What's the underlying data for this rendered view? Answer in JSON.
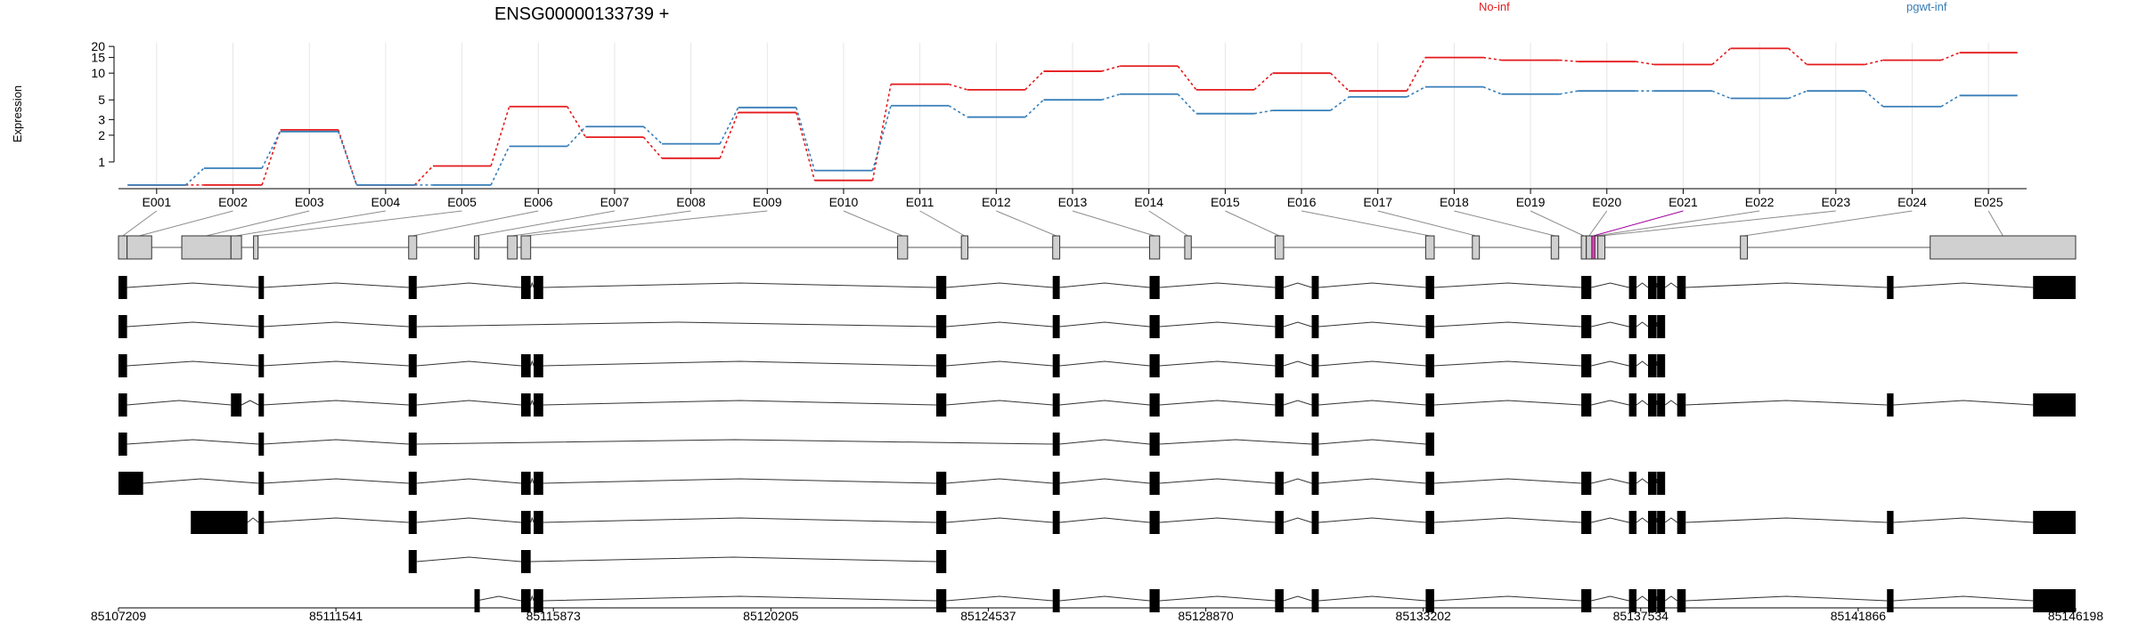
{
  "chart_data": {
    "type": "line",
    "title": "ENSG00000133739 +",
    "ylabel": "Expression",
    "y_scale": "log",
    "y_ticks": [
      "1",
      "2",
      "3",
      "5",
      "10",
      "15",
      "20"
    ],
    "y_tick_values": [
      1,
      2,
      3,
      5,
      10,
      15,
      20
    ],
    "ylim": [
      0.5,
      22
    ],
    "grid": true,
    "legend_placement": "top",
    "categories": [
      "E001",
      "E002",
      "E003",
      "E004",
      "E005",
      "E006",
      "E007",
      "E008",
      "E009",
      "E010",
      "E011",
      "E012",
      "E013",
      "E014",
      "E015",
      "E016",
      "E017",
      "E018",
      "E019",
      "E020",
      "E021",
      "E022",
      "E023",
      "E024",
      "E025"
    ],
    "series": [
      {
        "name": "No-inf",
        "color": "#e41a1c",
        "values": [
          0.55,
          0.55,
          2.3,
          0.55,
          0.9,
          4.2,
          1.9,
          1.1,
          3.6,
          0.62,
          7.5,
          6.5,
          10.5,
          12,
          6.5,
          10,
          6.3,
          15,
          14,
          13.5,
          12.5,
          19,
          12.5,
          14,
          17
        ]
      },
      {
        "name": "pgwt-inf",
        "color": "#377eb8",
        "values": [
          0.55,
          0.85,
          2.2,
          0.55,
          0.55,
          1.5,
          2.5,
          1.6,
          4.1,
          0.8,
          4.3,
          3.2,
          5.0,
          5.8,
          3.5,
          3.8,
          5.4,
          7.0,
          5.8,
          6.3,
          6.3,
          5.2,
          6.3,
          4.2,
          5.6
        ]
      }
    ],
    "exons": [
      {
        "id": "E001",
        "start": 85107209,
        "end": 85107380
      },
      {
        "id": "E002",
        "start": 85107380,
        "end": 85107870
      },
      {
        "id": "E003",
        "start": 85108470,
        "end": 85109450
      },
      {
        "id": "E004",
        "start": 85109450,
        "end": 85109660
      },
      {
        "id": "E005",
        "start": 85109900,
        "end": 85109990
      },
      {
        "id": "E006",
        "start": 85112990,
        "end": 85113150
      },
      {
        "id": "E007",
        "start": 85114300,
        "end": 85114340
      },
      {
        "id": "E008",
        "start": 85114960,
        "end": 85115150
      },
      {
        "id": "E009",
        "start": 85115230,
        "end": 85115420
      },
      {
        "id": "E010",
        "start": 85122730,
        "end": 85122930
      },
      {
        "id": "E011",
        "start": 85124000,
        "end": 85124130
      },
      {
        "id": "E012",
        "start": 85125820,
        "end": 85125960
      },
      {
        "id": "E013",
        "start": 85127750,
        "end": 85127950
      },
      {
        "id": "E014",
        "start": 85128450,
        "end": 85128580
      },
      {
        "id": "E015",
        "start": 85130250,
        "end": 85130420
      },
      {
        "id": "E016",
        "start": 85133250,
        "end": 85133420
      },
      {
        "id": "E017",
        "start": 85134180,
        "end": 85134320
      },
      {
        "id": "E018",
        "start": 85135750,
        "end": 85135900
      },
      {
        "id": "E019",
        "start": 85136350,
        "end": 85136450
      },
      {
        "id": "E020",
        "start": 85136450,
        "end": 85136560
      },
      {
        "id": "E021",
        "start": 85136560,
        "end": 85136620
      },
      {
        "id": "E022",
        "start": 85136620,
        "end": 85136680
      },
      {
        "id": "E023",
        "start": 85136680,
        "end": 85136820
      },
      {
        "id": "E024",
        "start": 85139520,
        "end": 85139660
      },
      {
        "id": "E025",
        "start": 85143300,
        "end": 85146198
      }
    ],
    "highlighted_exon": "E021",
    "highlight_color": "#ff33cc",
    "genome_axis": {
      "range": [
        85107209,
        85146198
      ],
      "tick_labels": [
        "85107209",
        "85111541",
        "85115873",
        "85120205",
        "85124537",
        "85128870",
        "85133202",
        "85137534",
        "85141866",
        "85146198"
      ]
    },
    "transcripts": [
      [
        [
          85107209,
          85107380
        ],
        [
          85110000,
          85110090
        ],
        [
          85112990,
          85113150
        ],
        [
          85115230,
          85115420
        ],
        [
          85115480,
          85115670
        ],
        [
          85123500,
          85123700
        ],
        [
          85125820,
          85125960
        ],
        [
          85127750,
          85127950
        ],
        [
          85130250,
          85130420
        ],
        [
          85130980,
          85131120
        ],
        [
          85133250,
          85133420
        ],
        [
          85136350,
          85136550
        ],
        [
          85137300,
          85137450
        ],
        [
          85137680,
          85137850
        ],
        [
          85137860,
          85138020
        ],
        [
          85138260,
          85138430
        ],
        [
          85142440,
          85142570
        ],
        [
          85145350,
          85146198
        ]
      ],
      [
        [
          85107209,
          85107380
        ],
        [
          85110000,
          85110090
        ],
        [
          85112990,
          85113150
        ],
        [
          85123500,
          85123700
        ],
        [
          85125820,
          85125960
        ],
        [
          85127750,
          85127950
        ],
        [
          85130250,
          85130420
        ],
        [
          85130980,
          85131120
        ],
        [
          85133250,
          85133420
        ],
        [
          85136350,
          85136550
        ],
        [
          85137300,
          85137450
        ],
        [
          85137680,
          85137850
        ],
        [
          85137860,
          85138020
        ]
      ],
      [
        [
          85107209,
          85107380
        ],
        [
          85110000,
          85110090
        ],
        [
          85112990,
          85113150
        ],
        [
          85115230,
          85115420
        ],
        [
          85115480,
          85115670
        ],
        [
          85123500,
          85123700
        ],
        [
          85125820,
          85125960
        ],
        [
          85127750,
          85127950
        ],
        [
          85130250,
          85130420
        ],
        [
          85130980,
          85131120
        ],
        [
          85133250,
          85133420
        ],
        [
          85136350,
          85136550
        ],
        [
          85137300,
          85137450
        ],
        [
          85137680,
          85137850
        ],
        [
          85137860,
          85138020
        ]
      ],
      [
        [
          85107209,
          85107380
        ],
        [
          85109450,
          85109660
        ],
        [
          85110000,
          85110090
        ],
        [
          85112990,
          85113150
        ],
        [
          85115230,
          85115420
        ],
        [
          85115480,
          85115670
        ],
        [
          85123500,
          85123700
        ],
        [
          85125820,
          85125960
        ],
        [
          85127750,
          85127950
        ],
        [
          85130250,
          85130420
        ],
        [
          85130980,
          85131120
        ],
        [
          85133250,
          85133420
        ],
        [
          85136350,
          85136550
        ],
        [
          85137300,
          85137450
        ],
        [
          85137680,
          85137850
        ],
        [
          85137860,
          85138020
        ],
        [
          85138260,
          85138430
        ],
        [
          85142440,
          85142570
        ],
        [
          85145350,
          85146198
        ]
      ],
      [
        [
          85107209,
          85107380
        ],
        [
          85110000,
          85110090
        ],
        [
          85112990,
          85113150
        ],
        [
          85125820,
          85125960
        ],
        [
          85127750,
          85127950
        ],
        [
          85130980,
          85131120
        ],
        [
          85133250,
          85133420
        ]
      ],
      [
        [
          85107209,
          85107700
        ],
        [
          85110000,
          85110090
        ],
        [
          85112990,
          85113150
        ],
        [
          85115230,
          85115420
        ],
        [
          85115480,
          85115670
        ],
        [
          85123500,
          85123700
        ],
        [
          85125820,
          85125960
        ],
        [
          85127750,
          85127950
        ],
        [
          85130250,
          85130420
        ],
        [
          85130980,
          85131120
        ],
        [
          85133250,
          85133420
        ],
        [
          85136350,
          85136550
        ],
        [
          85137300,
          85137450
        ],
        [
          85137680,
          85137850
        ],
        [
          85137860,
          85138020
        ]
      ],
      [
        [
          85108650,
          85109780
        ],
        [
          85110000,
          85110090
        ],
        [
          85112990,
          85113150
        ],
        [
          85115230,
          85115420
        ],
        [
          85115480,
          85115670
        ],
        [
          85123500,
          85123700
        ],
        [
          85125820,
          85125960
        ],
        [
          85127750,
          85127950
        ],
        [
          85130250,
          85130420
        ],
        [
          85130980,
          85131120
        ],
        [
          85133250,
          85133420
        ],
        [
          85136350,
          85136550
        ],
        [
          85137300,
          85137450
        ],
        [
          85137680,
          85137850
        ],
        [
          85137860,
          85138020
        ],
        [
          85138260,
          85138430
        ],
        [
          85142440,
          85142570
        ],
        [
          85145350,
          85146198
        ]
      ],
      [
        [
          85112990,
          85113150
        ],
        [
          85115230,
          85115420
        ],
        [
          85123500,
          85123700
        ]
      ],
      [
        [
          85114300,
          85114340
        ],
        [
          85115230,
          85115420
        ],
        [
          85115480,
          85115670
        ],
        [
          85123500,
          85123700
        ],
        [
          85125820,
          85125960
        ],
        [
          85127750,
          85127950
        ],
        [
          85130250,
          85130420
        ],
        [
          85130980,
          85131120
        ],
        [
          85133250,
          85133420
        ],
        [
          85136350,
          85136550
        ],
        [
          85137300,
          85137450
        ],
        [
          85137680,
          85137850
        ],
        [
          85137860,
          85138020
        ],
        [
          85138260,
          85138430
        ],
        [
          85142440,
          85142570
        ],
        [
          85145350,
          85146198
        ]
      ]
    ]
  }
}
